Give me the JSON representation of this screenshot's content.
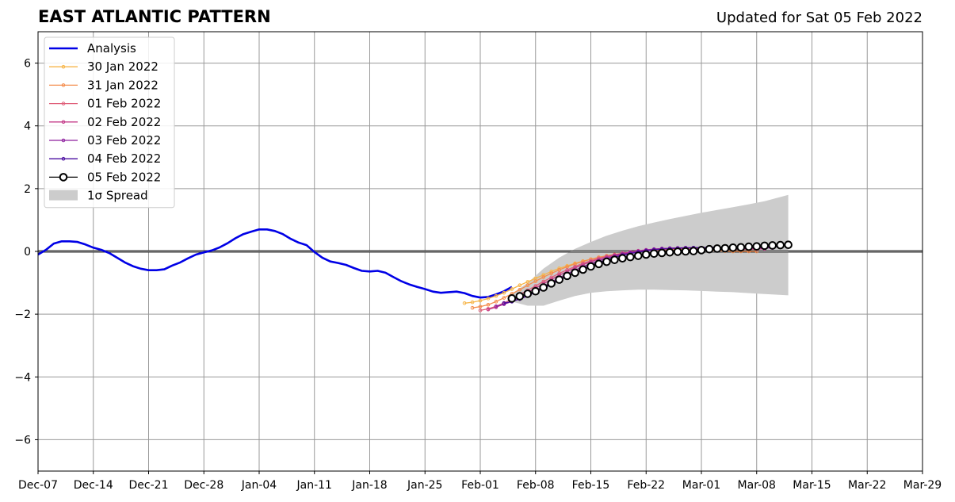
{
  "header": {
    "title": "EAST ATLANTIC PATTERN",
    "updated": "Updated for Sat 05 Feb 2022"
  },
  "chart_data": {
    "type": "line",
    "title": "EAST ATLANTIC PATTERN",
    "subtitle": "Updated for Sat 05 Feb 2022",
    "xlabel": "",
    "ylabel": "",
    "xlim": [
      "2021-12-07",
      "2022-03-29"
    ],
    "ylim": [
      -7,
      7
    ],
    "grid": true,
    "legend_position": "top-left",
    "x_ticks": [
      "Dec-07",
      "Dec-14",
      "Dec-21",
      "Dec-28",
      "Jan-04",
      "Jan-11",
      "Jan-18",
      "Jan-25",
      "Feb-01",
      "Feb-08",
      "Feb-15",
      "Feb-22",
      "Mar-01",
      "Mar-08",
      "Mar-15",
      "Mar-22",
      "Mar-29"
    ],
    "y_ticks": [
      6,
      4,
      2,
      0,
      -2,
      -4,
      -6
    ],
    "y_tick_labels": [
      "6",
      "4",
      "2",
      "0",
      "−2",
      "−4",
      "−6"
    ],
    "series": [
      {
        "name": "Analysis",
        "color": "#0000e6",
        "style": "line",
        "x": [
          "2021-12-07",
          "2021-12-08",
          "2021-12-09",
          "2021-12-10",
          "2021-12-11",
          "2021-12-12",
          "2021-12-13",
          "2021-12-14",
          "2021-12-15",
          "2021-12-16",
          "2021-12-17",
          "2021-12-18",
          "2021-12-19",
          "2021-12-20",
          "2021-12-21",
          "2021-12-22",
          "2021-12-23",
          "2021-12-24",
          "2021-12-25",
          "2021-12-26",
          "2021-12-27",
          "2021-12-28",
          "2021-12-29",
          "2021-12-30",
          "2021-12-31",
          "2022-01-01",
          "2022-01-02",
          "2022-01-03",
          "2022-01-04",
          "2022-01-05",
          "2022-01-06",
          "2022-01-07",
          "2022-01-08",
          "2022-01-09",
          "2022-01-10",
          "2022-01-11",
          "2022-01-12",
          "2022-01-13",
          "2022-01-14",
          "2022-01-15",
          "2022-01-16",
          "2022-01-17",
          "2022-01-18",
          "2022-01-19",
          "2022-01-20",
          "2022-01-21",
          "2022-01-22",
          "2022-01-23",
          "2022-01-24",
          "2022-01-25",
          "2022-01-26",
          "2022-01-27",
          "2022-01-28",
          "2022-01-29",
          "2022-01-30",
          "2022-01-31",
          "2022-02-01",
          "2022-02-02",
          "2022-02-03",
          "2022-02-04",
          "2022-02-05"
        ],
        "values": [
          -0.1,
          0.05,
          0.25,
          0.32,
          0.32,
          0.3,
          0.22,
          0.12,
          0.05,
          -0.05,
          -0.2,
          -0.35,
          -0.47,
          -0.55,
          -0.6,
          -0.6,
          -0.57,
          -0.45,
          -0.35,
          -0.22,
          -0.1,
          -0.03,
          0.03,
          0.13,
          0.26,
          0.42,
          0.55,
          0.63,
          0.7,
          0.7,
          0.65,
          0.55,
          0.4,
          0.28,
          0.2,
          -0.02,
          -0.2,
          -0.32,
          -0.37,
          -0.43,
          -0.53,
          -0.62,
          -0.64,
          -0.62,
          -0.68,
          -0.82,
          -0.95,
          -1.05,
          -1.13,
          -1.2,
          -1.28,
          -1.32,
          -1.3,
          -1.28,
          -1.33,
          -1.42,
          -1.47,
          -1.45,
          -1.37,
          -1.27,
          -1.13
        ]
      },
      {
        "name": "30 Jan 2022",
        "color": "#f7b548",
        "style": "line-marker",
        "x": [
          "2022-01-30",
          "2022-01-31",
          "2022-02-01",
          "2022-02-02",
          "2022-02-03",
          "2022-02-04",
          "2022-02-05",
          "2022-02-06",
          "2022-02-07",
          "2022-02-08",
          "2022-02-09",
          "2022-02-10",
          "2022-02-11",
          "2022-02-12",
          "2022-02-13",
          "2022-02-14",
          "2022-02-15",
          "2022-02-16",
          "2022-02-17",
          "2022-02-18",
          "2022-02-19",
          "2022-02-20",
          "2022-02-21",
          "2022-02-22",
          "2022-02-23",
          "2022-02-24",
          "2022-02-25",
          "2022-02-26",
          "2022-02-27",
          "2022-02-28"
        ],
        "values": [
          -1.65,
          -1.62,
          -1.57,
          -1.5,
          -1.42,
          -1.32,
          -1.2,
          -1.08,
          -0.97,
          -0.86,
          -0.75,
          -0.64,
          -0.54,
          -0.46,
          -0.38,
          -0.31,
          -0.25,
          -0.19,
          -0.14,
          -0.1,
          -0.06,
          -0.03,
          0.0,
          0.03,
          0.05,
          0.07,
          0.08,
          0.09,
          0.1,
          0.1
        ]
      },
      {
        "name": "31 Jan 2022",
        "color": "#f48c4c",
        "style": "line-marker",
        "x": [
          "2022-01-31",
          "2022-02-01",
          "2022-02-02",
          "2022-02-03",
          "2022-02-04",
          "2022-02-05",
          "2022-02-06",
          "2022-02-07",
          "2022-02-08",
          "2022-02-09",
          "2022-02-10",
          "2022-02-11",
          "2022-02-12",
          "2022-02-13",
          "2022-02-14",
          "2022-02-15",
          "2022-02-16",
          "2022-02-17",
          "2022-02-18",
          "2022-02-19",
          "2022-02-20",
          "2022-02-21",
          "2022-02-22",
          "2022-02-23",
          "2022-02-24",
          "2022-02-25",
          "2022-02-26",
          "2022-02-27",
          "2022-02-28",
          "2022-03-01",
          "2022-03-02",
          "2022-03-03",
          "2022-03-04",
          "2022-03-05",
          "2022-03-06",
          "2022-03-07",
          "2022-03-08"
        ],
        "values": [
          -1.8,
          -1.76,
          -1.7,
          -1.6,
          -1.48,
          -1.35,
          -1.22,
          -1.08,
          -0.95,
          -0.82,
          -0.7,
          -0.59,
          -0.49,
          -0.4,
          -0.32,
          -0.25,
          -0.19,
          -0.14,
          -0.1,
          -0.06,
          -0.03,
          0.0,
          0.02,
          0.04,
          0.05,
          0.06,
          0.06,
          0.06,
          0.05,
          0.04,
          0.03,
          0.02,
          0.01,
          0.0,
          0.0,
          0.0,
          0.0
        ]
      },
      {
        "name": "01 Feb 2022",
        "color": "#e0607a",
        "style": "line-marker",
        "x": [
          "2022-02-01",
          "2022-02-02",
          "2022-02-03",
          "2022-02-04",
          "2022-02-05",
          "2022-02-06",
          "2022-02-07",
          "2022-02-08",
          "2022-02-09",
          "2022-02-10",
          "2022-02-11",
          "2022-02-12",
          "2022-02-13",
          "2022-02-14",
          "2022-02-15",
          "2022-02-16",
          "2022-02-17",
          "2022-02-18",
          "2022-02-19",
          "2022-02-20",
          "2022-02-21",
          "2022-02-22",
          "2022-02-23",
          "2022-02-24",
          "2022-02-25",
          "2022-02-26",
          "2022-02-27",
          "2022-02-28",
          "2022-03-01",
          "2022-03-02",
          "2022-03-03",
          "2022-03-04",
          "2022-03-05",
          "2022-03-06",
          "2022-03-07",
          "2022-03-08"
        ],
        "values": [
          -1.88,
          -1.83,
          -1.75,
          -1.64,
          -1.52,
          -1.38,
          -1.24,
          -1.1,
          -0.96,
          -0.83,
          -0.7,
          -0.59,
          -0.48,
          -0.38,
          -0.3,
          -0.22,
          -0.16,
          -0.11,
          -0.06,
          -0.02,
          0.01,
          0.04,
          0.06,
          0.07,
          0.08,
          0.09,
          0.09,
          0.09,
          0.09,
          0.08,
          0.08,
          0.07,
          0.07,
          0.07,
          0.07,
          0.07
        ]
      },
      {
        "name": "02 Feb 2022",
        "color": "#c43c8a",
        "style": "line-marker",
        "x": [
          "2022-02-02",
          "2022-02-03",
          "2022-02-04",
          "2022-02-05",
          "2022-02-06",
          "2022-02-07",
          "2022-02-08",
          "2022-02-09",
          "2022-02-10",
          "2022-02-11",
          "2022-02-12",
          "2022-02-13",
          "2022-02-14",
          "2022-02-15",
          "2022-02-16",
          "2022-02-17",
          "2022-02-18",
          "2022-02-19",
          "2022-02-20",
          "2022-02-21",
          "2022-02-22",
          "2022-02-23",
          "2022-02-24",
          "2022-02-25",
          "2022-02-26",
          "2022-02-27",
          "2022-02-28",
          "2022-03-01",
          "2022-03-02",
          "2022-03-03",
          "2022-03-04",
          "2022-03-05",
          "2022-03-06",
          "2022-03-07",
          "2022-03-08",
          "2022-03-09"
        ],
        "values": [
          -1.85,
          -1.78,
          -1.68,
          -1.57,
          -1.45,
          -1.31,
          -1.17,
          -1.03,
          -0.89,
          -0.76,
          -0.64,
          -0.52,
          -0.42,
          -0.33,
          -0.25,
          -0.18,
          -0.12,
          -0.06,
          -0.02,
          0.02,
          0.05,
          0.07,
          0.09,
          0.1,
          0.11,
          0.11,
          0.11,
          0.11,
          0.1,
          0.1,
          0.09,
          0.09,
          0.08,
          0.08,
          0.08,
          0.08
        ]
      },
      {
        "name": "03 Feb 2022",
        "color": "#8e1f9e",
        "style": "line-marker",
        "x": [
          "2022-02-03",
          "2022-02-04",
          "2022-02-05",
          "2022-02-06",
          "2022-02-07",
          "2022-02-08",
          "2022-02-09",
          "2022-02-10",
          "2022-02-11",
          "2022-02-12",
          "2022-02-13",
          "2022-02-14",
          "2022-02-15",
          "2022-02-16",
          "2022-02-17",
          "2022-02-18",
          "2022-02-19",
          "2022-02-20",
          "2022-02-21",
          "2022-02-22",
          "2022-02-23",
          "2022-02-24",
          "2022-02-25",
          "2022-02-26",
          "2022-02-27",
          "2022-02-28",
          "2022-03-01",
          "2022-03-02",
          "2022-03-03",
          "2022-03-04",
          "2022-03-05",
          "2022-03-06",
          "2022-03-07",
          "2022-03-08",
          "2022-03-09",
          "2022-03-10"
        ],
        "values": [
          -1.75,
          -1.68,
          -1.6,
          -1.5,
          -1.38,
          -1.25,
          -1.12,
          -0.98,
          -0.85,
          -0.72,
          -0.6,
          -0.49,
          -0.39,
          -0.3,
          -0.22,
          -0.15,
          -0.09,
          -0.04,
          0.0,
          0.04,
          0.07,
          0.09,
          0.1,
          0.11,
          0.12,
          0.12,
          0.12,
          0.12,
          0.12,
          0.11,
          0.11,
          0.11,
          0.11,
          0.11,
          0.11,
          0.11
        ]
      },
      {
        "name": "04 Feb 2022",
        "color": "#4a0ca0",
        "style": "line-marker",
        "x": [
          "2022-02-04",
          "2022-02-05",
          "2022-02-06",
          "2022-02-07",
          "2022-02-08",
          "2022-02-09",
          "2022-02-10",
          "2022-02-11",
          "2022-02-12",
          "2022-02-13",
          "2022-02-14",
          "2022-02-15",
          "2022-02-16",
          "2022-02-17",
          "2022-02-18",
          "2022-02-19",
          "2022-02-20",
          "2022-02-21",
          "2022-02-22",
          "2022-02-23",
          "2022-02-24",
          "2022-02-25",
          "2022-02-26",
          "2022-02-27",
          "2022-02-28",
          "2022-03-01",
          "2022-03-02",
          "2022-03-03",
          "2022-03-04",
          "2022-03-05",
          "2022-03-06",
          "2022-03-07",
          "2022-03-08",
          "2022-03-09",
          "2022-03-10",
          "2022-03-11"
        ],
        "values": [
          -1.65,
          -1.6,
          -1.52,
          -1.42,
          -1.3,
          -1.18,
          -1.05,
          -0.92,
          -0.79,
          -0.67,
          -0.55,
          -0.45,
          -0.35,
          -0.27,
          -0.19,
          -0.12,
          -0.07,
          -0.02,
          0.02,
          0.05,
          0.07,
          0.09,
          0.1,
          0.11,
          0.12,
          0.12,
          0.13,
          0.13,
          0.13,
          0.14,
          0.14,
          0.14,
          0.15,
          0.15,
          0.15,
          0.15
        ]
      },
      {
        "name": "05 Feb 2022",
        "color": "#000000",
        "style": "circle-marker",
        "x": [
          "2022-02-05",
          "2022-02-06",
          "2022-02-07",
          "2022-02-08",
          "2022-02-09",
          "2022-02-10",
          "2022-02-11",
          "2022-02-12",
          "2022-02-13",
          "2022-02-14",
          "2022-02-15",
          "2022-02-16",
          "2022-02-17",
          "2022-02-18",
          "2022-02-19",
          "2022-02-20",
          "2022-02-21",
          "2022-02-22",
          "2022-02-23",
          "2022-02-24",
          "2022-02-25",
          "2022-02-26",
          "2022-02-27",
          "2022-02-28",
          "2022-03-01",
          "2022-03-02",
          "2022-03-03",
          "2022-03-04",
          "2022-03-05",
          "2022-03-06",
          "2022-03-07",
          "2022-03-08",
          "2022-03-09",
          "2022-03-10",
          "2022-03-11",
          "2022-03-12"
        ],
        "values": [
          -1.5,
          -1.43,
          -1.35,
          -1.27,
          -1.15,
          -1.02,
          -0.9,
          -0.78,
          -0.68,
          -0.58,
          -0.48,
          -0.4,
          -0.33,
          -0.27,
          -0.22,
          -0.18,
          -0.14,
          -0.1,
          -0.07,
          -0.05,
          -0.03,
          -0.01,
          0.0,
          0.01,
          0.04,
          0.07,
          0.09,
          0.1,
          0.12,
          0.13,
          0.15,
          0.16,
          0.18,
          0.19,
          0.2,
          0.21
        ]
      }
    ],
    "spread": {
      "name": "1σ Spread",
      "color": "#cccccc",
      "x": [
        "2022-02-05",
        "2022-02-07",
        "2022-02-09",
        "2022-02-11",
        "2022-02-13",
        "2022-02-15",
        "2022-02-17",
        "2022-02-19",
        "2022-02-21",
        "2022-02-23",
        "2022-02-25",
        "2022-02-27",
        "2022-03-01",
        "2022-03-03",
        "2022-03-05",
        "2022-03-07",
        "2022-03-09",
        "2022-03-12"
      ],
      "upper": [
        -1.35,
        -1.0,
        -0.55,
        -0.2,
        0.08,
        0.3,
        0.5,
        0.66,
        0.8,
        0.92,
        1.03,
        1.13,
        1.23,
        1.32,
        1.41,
        1.5,
        1.6,
        1.8
      ],
      "lower": [
        -1.6,
        -1.73,
        -1.73,
        -1.57,
        -1.42,
        -1.32,
        -1.27,
        -1.24,
        -1.22,
        -1.22,
        -1.23,
        -1.24,
        -1.26,
        -1.28,
        -1.3,
        -1.33,
        -1.36,
        -1.4
      ]
    }
  }
}
